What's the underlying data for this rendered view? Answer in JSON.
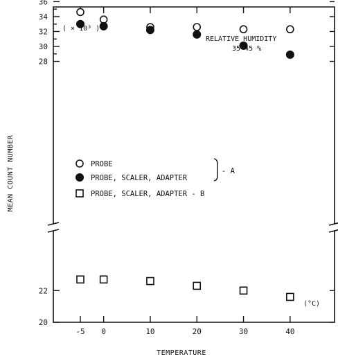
{
  "chart_data": {
    "type": "scatter",
    "title": "",
    "xlabel": "TEMPERATURE",
    "ylabel": "MEAN COUNT NUMBER",
    "unit_note": "( × 10³ )",
    "x_unit_note": "(°C)",
    "annotation": {
      "line1": "RELATIVE HUMIDITY",
      "line2": "35-45 %"
    },
    "x_ticks": [
      -5,
      0,
      10,
      20,
      30,
      40
    ],
    "y_ticks_upper": [
      28,
      30,
      32,
      34,
      36
    ],
    "y_ticks_lower": [
      20,
      22
    ],
    "y_axis_break": true,
    "xlim": [
      -10,
      45
    ],
    "ylim": [
      20,
      36
    ],
    "grid": false,
    "legend_placement": "middle-left",
    "bracket_label": "- A",
    "series": [
      {
        "name": "PROBE",
        "marker": "open-circle",
        "x": [
          -5,
          0,
          10,
          20,
          30,
          40
        ],
        "y": [
          34.6,
          33.6,
          32.6,
          32.6,
          32.3,
          32.3
        ]
      },
      {
        "name": "PROBE, SCALER, ADAPTER",
        "marker": "filled-circle",
        "x": [
          -5,
          0,
          10,
          20,
          30,
          40
        ],
        "y": [
          33.0,
          32.7,
          32.2,
          31.6,
          30.1,
          28.9
        ]
      },
      {
        "name": "PROBE, SCALER, ADAPTER  - B",
        "marker": "open-square",
        "x": [
          -5,
          0,
          10,
          20,
          30,
          40
        ],
        "y": [
          22.7,
          22.7,
          22.6,
          22.3,
          22.0,
          21.6
        ]
      }
    ]
  }
}
